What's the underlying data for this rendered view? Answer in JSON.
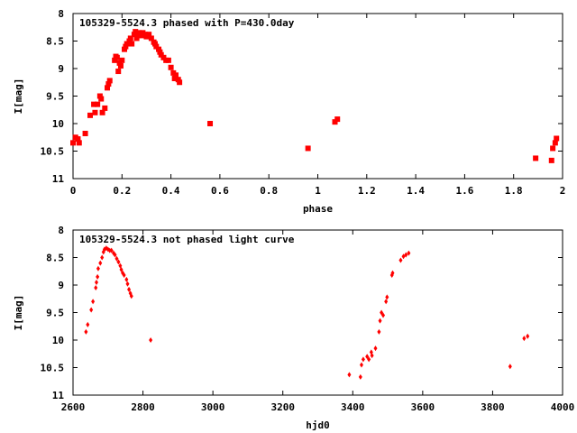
{
  "chart_data": [
    {
      "type": "scatter",
      "title": "105329-5524.3 phased with P=430.0day",
      "xlabel": "phase",
      "ylabel": "I[mag]",
      "xlim": [
        0,
        2
      ],
      "ylim": [
        11,
        8
      ],
      "y_inverted": true,
      "grid": false,
      "xticks": [
        "0",
        "0.2",
        "0.4",
        "0.6",
        "0.8",
        "1",
        "1.2",
        "1.4",
        "1.6",
        "1.8",
        "2"
      ],
      "xtick_values": [
        0,
        0.2,
        0.4,
        0.6,
        0.8,
        1.0,
        1.2,
        1.4,
        1.6,
        1.8,
        2.0
      ],
      "yticks": [
        "8",
        "8.5",
        "9",
        "9.5",
        "10",
        "10.5",
        "11"
      ],
      "ytick_values": [
        8,
        8.5,
        9,
        9.5,
        10,
        10.5,
        11
      ],
      "color": "#ff0000",
      "points": [
        [
          0.0,
          10.35
        ],
        [
          0.01,
          10.25
        ],
        [
          0.02,
          10.28
        ],
        [
          0.025,
          10.35
        ],
        [
          0.05,
          10.18
        ],
        [
          0.07,
          9.85
        ],
        [
          0.085,
          9.65
        ],
        [
          0.09,
          9.8
        ],
        [
          0.1,
          9.65
        ],
        [
          0.11,
          9.5
        ],
        [
          0.115,
          9.55
        ],
        [
          0.12,
          9.8
        ],
        [
          0.13,
          9.72
        ],
        [
          0.14,
          9.35
        ],
        [
          0.145,
          9.28
        ],
        [
          0.15,
          9.22
        ],
        [
          0.17,
          8.85
        ],
        [
          0.175,
          8.78
        ],
        [
          0.18,
          8.8
        ],
        [
          0.185,
          9.05
        ],
        [
          0.19,
          8.9
        ],
        [
          0.195,
          8.95
        ],
        [
          0.2,
          8.85
        ],
        [
          0.21,
          8.65
        ],
        [
          0.215,
          8.6
        ],
        [
          0.22,
          8.55
        ],
        [
          0.23,
          8.5
        ],
        [
          0.235,
          8.45
        ],
        [
          0.24,
          8.55
        ],
        [
          0.25,
          8.38
        ],
        [
          0.255,
          8.33
        ],
        [
          0.26,
          8.45
        ],
        [
          0.265,
          8.4
        ],
        [
          0.27,
          8.35
        ],
        [
          0.28,
          8.4
        ],
        [
          0.285,
          8.35
        ],
        [
          0.295,
          8.38
        ],
        [
          0.3,
          8.42
        ],
        [
          0.31,
          8.38
        ],
        [
          0.32,
          8.45
        ],
        [
          0.33,
          8.52
        ],
        [
          0.335,
          8.55
        ],
        [
          0.34,
          8.6
        ],
        [
          0.35,
          8.65
        ],
        [
          0.355,
          8.7
        ],
        [
          0.36,
          8.75
        ],
        [
          0.37,
          8.8
        ],
        [
          0.38,
          8.85
        ],
        [
          0.39,
          8.85
        ],
        [
          0.4,
          8.98
        ],
        [
          0.41,
          9.08
        ],
        [
          0.415,
          9.18
        ],
        [
          0.42,
          9.12
        ],
        [
          0.43,
          9.2
        ],
        [
          0.435,
          9.25
        ],
        [
          0.56,
          10.0
        ],
        [
          0.96,
          10.45
        ],
        [
          1.07,
          9.97
        ],
        [
          1.08,
          9.92
        ],
        [
          1.89,
          10.63
        ],
        [
          1.955,
          10.67
        ],
        [
          1.96,
          10.45
        ],
        [
          1.97,
          10.35
        ],
        [
          1.975,
          10.27
        ]
      ]
    },
    {
      "type": "scatter",
      "title": "105329-5524.3 not phased light curve",
      "xlabel": "hjd0",
      "ylabel": "I[mag]",
      "xlim": [
        2600,
        4000
      ],
      "ylim": [
        11,
        8
      ],
      "y_inverted": true,
      "grid": false,
      "xticks": [
        "2600",
        "2800",
        "3000",
        "3200",
        "3400",
        "3600",
        "3800",
        "4000"
      ],
      "xtick_values": [
        2600,
        2800,
        3000,
        3200,
        3400,
        3600,
        3800,
        4000
      ],
      "yticks": [
        "8",
        "8.5",
        "9",
        "9.5",
        "10",
        "10.5",
        "11"
      ],
      "ytick_values": [
        8,
        8.5,
        9,
        9.5,
        10,
        10.5,
        11
      ],
      "color": "#ff0000",
      "points": [
        [
          2637,
          9.85
        ],
        [
          2642,
          9.72
        ],
        [
          2652,
          9.45
        ],
        [
          2657,
          9.3
        ],
        [
          2665,
          9.05
        ],
        [
          2667,
          8.95
        ],
        [
          2670,
          8.85
        ],
        [
          2672,
          8.7
        ],
        [
          2678,
          8.6
        ],
        [
          2683,
          8.5
        ],
        [
          2687,
          8.4
        ],
        [
          2690,
          8.35
        ],
        [
          2695,
          8.33
        ],
        [
          2700,
          8.35
        ],
        [
          2705,
          8.37
        ],
        [
          2710,
          8.37
        ],
        [
          2716,
          8.42
        ],
        [
          2720,
          8.45
        ],
        [
          2725,
          8.52
        ],
        [
          2730,
          8.58
        ],
        [
          2735,
          8.65
        ],
        [
          2738,
          8.72
        ],
        [
          2742,
          8.78
        ],
        [
          2746,
          8.82
        ],
        [
          2753,
          8.9
        ],
        [
          2756,
          8.98
        ],
        [
          2760,
          9.08
        ],
        [
          2764,
          9.15
        ],
        [
          2767,
          9.2
        ],
        [
          2822,
          10.0
        ],
        [
          3390,
          10.63
        ],
        [
          3422,
          10.67
        ],
        [
          3425,
          10.45
        ],
        [
          3430,
          10.35
        ],
        [
          3441,
          10.3
        ],
        [
          3446,
          10.35
        ],
        [
          3453,
          10.22
        ],
        [
          3455,
          10.28
        ],
        [
          3465,
          10.15
        ],
        [
          3475,
          9.85
        ],
        [
          3478,
          9.65
        ],
        [
          3482,
          9.5
        ],
        [
          3487,
          9.55
        ],
        [
          3495,
          9.3
        ],
        [
          3498,
          9.22
        ],
        [
          3512,
          8.82
        ],
        [
          3514,
          8.78
        ],
        [
          3537,
          8.55
        ],
        [
          3545,
          8.48
        ],
        [
          3552,
          8.45
        ],
        [
          3560,
          8.42
        ],
        [
          3850,
          10.48
        ],
        [
          3890,
          9.97
        ],
        [
          3900,
          9.93
        ]
      ]
    }
  ]
}
